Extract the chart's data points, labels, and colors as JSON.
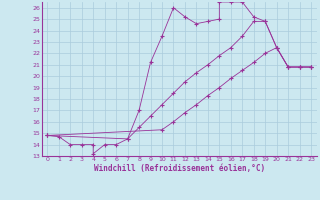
{
  "bg_color": "#cce8f0",
  "grid_color": "#aaccdd",
  "line_color": "#993399",
  "xlim": [
    -0.5,
    23.5
  ],
  "ylim": [
    13,
    26.5
  ],
  "xticks": [
    0,
    1,
    2,
    3,
    4,
    5,
    6,
    7,
    8,
    9,
    10,
    11,
    12,
    13,
    14,
    15,
    16,
    17,
    18,
    19,
    20,
    21,
    22,
    23
  ],
  "yticks": [
    13,
    14,
    15,
    16,
    17,
    18,
    19,
    20,
    21,
    22,
    23,
    24,
    25,
    26
  ],
  "xlabel": "Windchill (Refroidissement éolien,°C)",
  "s1": [
    [
      0,
      14.8
    ],
    [
      1,
      14.7
    ],
    [
      2,
      14.0
    ],
    [
      3,
      14.0
    ],
    [
      4,
      14.0
    ],
    [
      4,
      13.2
    ],
    [
      5,
      14.0
    ],
    [
      6,
      14.0
    ],
    [
      7,
      14.5
    ],
    [
      8,
      17.0
    ],
    [
      9,
      21.2
    ],
    [
      10,
      23.5
    ],
    [
      11,
      26.0
    ],
    [
      12,
      25.2
    ],
    [
      13,
      24.6
    ],
    [
      14,
      24.8
    ],
    [
      15,
      25.0
    ],
    [
      15,
      26.5
    ],
    [
      16,
      26.5
    ],
    [
      17,
      26.5
    ],
    [
      18,
      25.2
    ],
    [
      19,
      24.8
    ],
    [
      20,
      22.5
    ],
    [
      21,
      20.8
    ],
    [
      22,
      20.8
    ],
    [
      23,
      20.8
    ]
  ],
  "s2": [
    [
      0,
      14.8
    ],
    [
      7,
      14.5
    ],
    [
      8,
      15.5
    ],
    [
      9,
      16.5
    ],
    [
      10,
      17.5
    ],
    [
      11,
      18.5
    ],
    [
      12,
      19.5
    ],
    [
      13,
      20.3
    ],
    [
      14,
      21.0
    ],
    [
      15,
      21.8
    ],
    [
      16,
      22.5
    ],
    [
      17,
      23.5
    ],
    [
      18,
      24.8
    ],
    [
      19,
      24.8
    ],
    [
      20,
      22.5
    ],
    [
      21,
      20.8
    ],
    [
      22,
      20.8
    ],
    [
      23,
      20.8
    ]
  ],
  "s3": [
    [
      0,
      14.8
    ],
    [
      10,
      15.3
    ],
    [
      11,
      16.0
    ],
    [
      12,
      16.8
    ],
    [
      13,
      17.5
    ],
    [
      14,
      18.3
    ],
    [
      15,
      19.0
    ],
    [
      16,
      19.8
    ],
    [
      17,
      20.5
    ],
    [
      18,
      21.2
    ],
    [
      19,
      22.0
    ],
    [
      20,
      22.5
    ],
    [
      21,
      20.8
    ],
    [
      22,
      20.8
    ],
    [
      23,
      20.8
    ]
  ]
}
